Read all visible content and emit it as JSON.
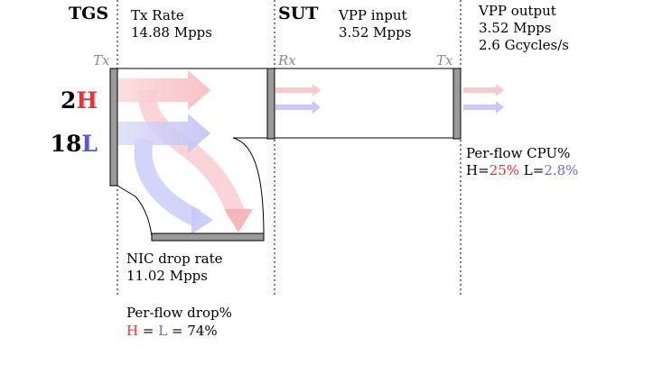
{
  "colors": {
    "high": "#e8323a",
    "low": "#5a55dd",
    "high_arrow": "#f9c9cc",
    "low_arrow": "#c8c9f7",
    "device": "#9a9a9a"
  },
  "labels": {
    "tgs": "TGS",
    "sut": "SUT",
    "tx_left": "Tx",
    "rx": "Rx",
    "tx_right": "Tx",
    "h_count": "2",
    "h_letter": "H",
    "l_count": "18",
    "l_letter": "L"
  },
  "tx_rate": {
    "title": "Tx Rate",
    "value": "14.88 Mpps"
  },
  "vpp_input": {
    "title": "VPP input",
    "value": "3.52 Mpps"
  },
  "vpp_output": {
    "title": "VPP output",
    "value": "3.52 Mpps",
    "cycles": "2.6 Gcycles/s"
  },
  "cpu": {
    "title": "Per-flow CPU%",
    "h_prefix": "H=",
    "h_value": "25%",
    "l_prefix": " L=",
    "l_value": "2.8%"
  },
  "nic_drop": {
    "title": "NIC drop rate",
    "value": "11.02 Mpps"
  },
  "drop_pct": {
    "title": "Per-flow drop%",
    "h": "H",
    "eq1": " = ",
    "l": "L",
    "eq2": " = 74%"
  }
}
